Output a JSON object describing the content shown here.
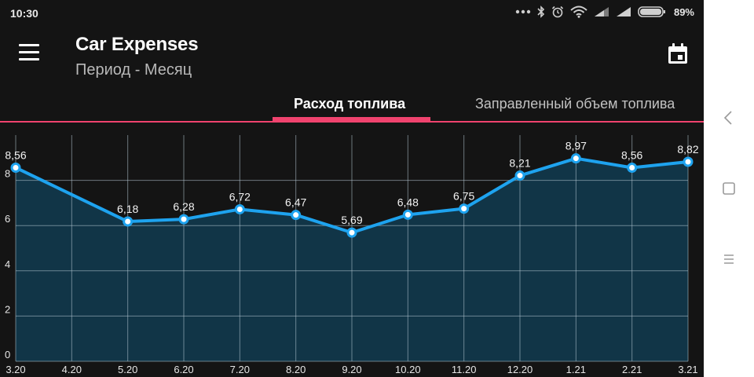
{
  "status_bar": {
    "time": "10:30",
    "battery_percent": "89%",
    "icons": [
      "more-dots-icon",
      "bluetooth-icon",
      "alarm-icon",
      "wifi-icon",
      "signal-icon",
      "signal-icon",
      "battery-icon"
    ]
  },
  "app_bar": {
    "title": "Car Expenses",
    "subtitle": "Период - Месяц"
  },
  "tabs": [
    {
      "label": "Расход топлива",
      "selected": true
    },
    {
      "label": "Заправленный объем топлива",
      "selected": false
    }
  ],
  "colors": {
    "accent": "#f0436e",
    "line": "#1ea3ef",
    "area_fill": "#113547",
    "background": "#141414"
  },
  "chart_data": {
    "type": "area",
    "x_labels": [
      "3.20",
      "4.20",
      "5.20",
      "6.20",
      "7.20",
      "8.20",
      "9.20",
      "10.20",
      "11.20",
      "12.20",
      "1.21",
      "2.21",
      "3.21"
    ],
    "values": [
      8.56,
      null,
      6.18,
      6.28,
      6.72,
      6.47,
      5.69,
      6.48,
      6.75,
      8.21,
      8.97,
      8.56,
      8.82
    ],
    "value_labels": [
      "8,56",
      "",
      "6,18",
      "6,28",
      "6,72",
      "6,47",
      "5,69",
      "6,48",
      "6,75",
      "8,21",
      "8,97",
      "8,56",
      "8,82"
    ],
    "y_ticks": [
      "0",
      "2",
      "4",
      "6",
      "8"
    ],
    "y_tick_values": [
      0,
      2,
      4,
      6,
      8
    ],
    "ylim": [
      0,
      10
    ],
    "grid": true,
    "legend": "none"
  }
}
